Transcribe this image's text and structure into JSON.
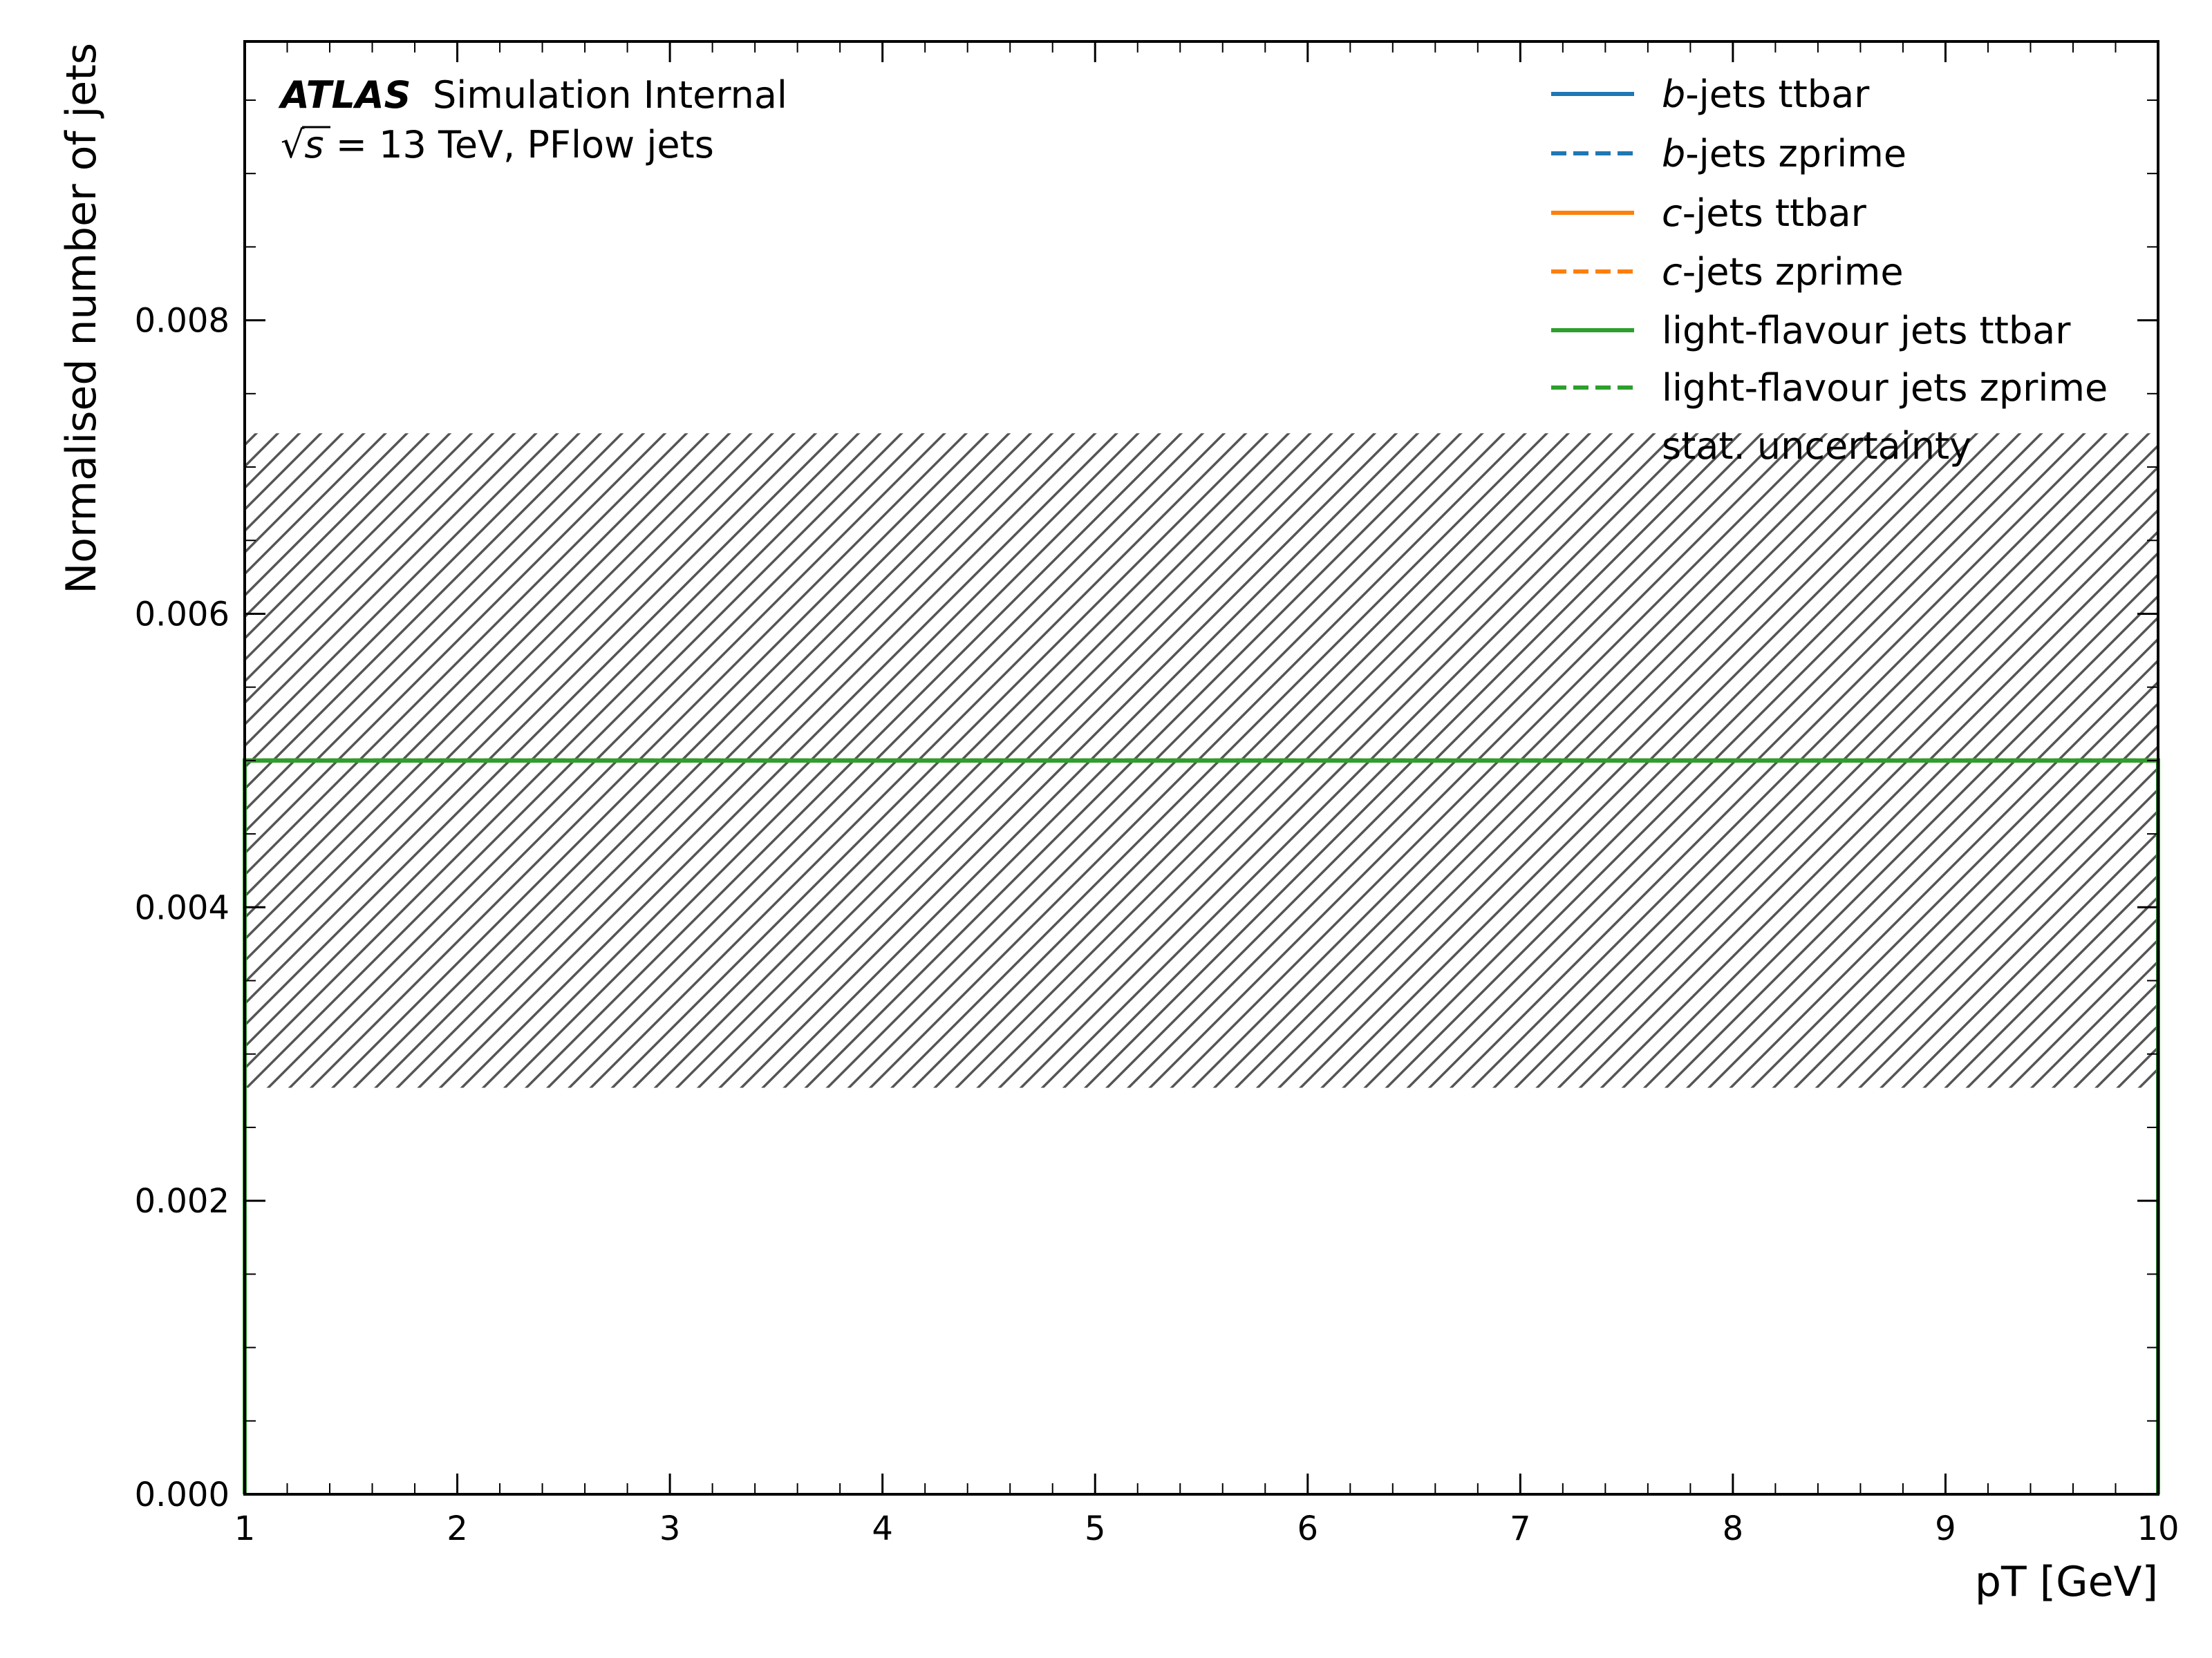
{
  "chart_data": {
    "type": "line",
    "xlabel": "pT [GeV]",
    "ylabel": "Normalised number of jets",
    "xlim": [
      1,
      10
    ],
    "ylim": [
      0,
      0.0099
    ],
    "x_ticks": [
      1,
      2,
      3,
      4,
      5,
      6,
      7,
      8,
      9,
      10
    ],
    "x_tick_labels": [
      "1",
      "2",
      "3",
      "4",
      "5",
      "6",
      "7",
      "8",
      "9",
      "10"
    ],
    "y_ticks": [
      0,
      0.002,
      0.004,
      0.006,
      0.008
    ],
    "y_tick_labels": [
      "0.000",
      "0.002",
      "0.004",
      "0.006",
      "0.008"
    ],
    "grid": false,
    "legend_position": "top-right",
    "annotations": {
      "experiment": "ATLAS",
      "status": "Simulation Internal",
      "energy_prefix": "√",
      "energy_var": "s",
      "energy_rest": " = 13 TeV, PFlow jets"
    },
    "series": [
      {
        "name_em": "b",
        "name_rest": "-jets ttbar",
        "color": "#1f77b4",
        "style": "solid",
        "x": [
          1,
          10
        ],
        "y": [
          0.005,
          0.005
        ]
      },
      {
        "name_em": "b",
        "name_rest": "-jets zprime",
        "color": "#1f77b4",
        "style": "dashed",
        "x": [
          1,
          10
        ],
        "y": [
          0.005,
          0.005
        ]
      },
      {
        "name_em": "c",
        "name_rest": "-jets ttbar",
        "color": "#ff7f0e",
        "style": "solid",
        "x": [
          1,
          10
        ],
        "y": [
          0.005,
          0.005
        ]
      },
      {
        "name_em": "c",
        "name_rest": "-jets zprime",
        "color": "#ff7f0e",
        "style": "dashed",
        "x": [
          1,
          10
        ],
        "y": [
          0.005,
          0.005
        ]
      },
      {
        "name_em": "",
        "name_rest": "light-flavour jets ttbar",
        "color": "#2ca02c",
        "style": "solid",
        "x": [
          1,
          10
        ],
        "y": [
          0.005,
          0.005
        ]
      },
      {
        "name_em": "",
        "name_rest": "light-flavour jets zprime",
        "color": "#2ca02c",
        "style": "dashed",
        "x": [
          1,
          10
        ],
        "y": [
          0.005,
          0.005
        ]
      }
    ],
    "uncertainty": {
      "label": "stat. uncertainty",
      "x": [
        1,
        10
      ],
      "low": 0.00277,
      "high": 0.00723,
      "color": "#555555"
    }
  }
}
